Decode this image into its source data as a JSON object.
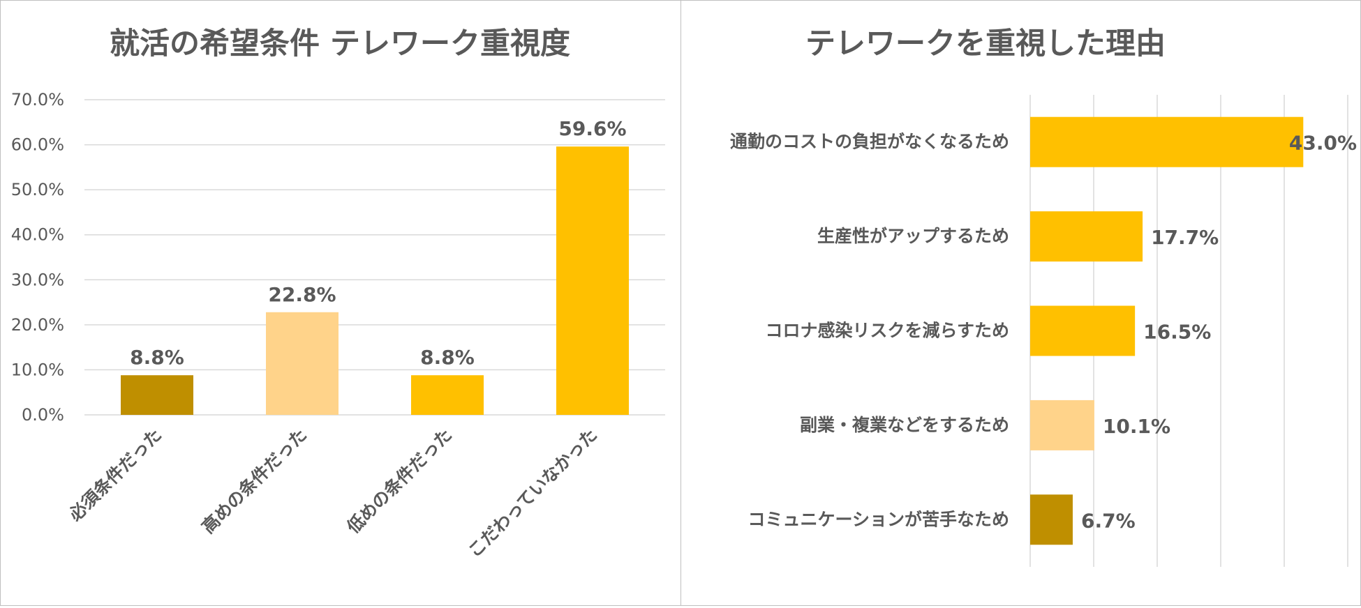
{
  "colors": {
    "bar_gold": "#FFC000",
    "bar_dark": "#BF8F00",
    "bar_light": "#FFD38A",
    "text": "#595959",
    "grid": "#D9D9D9"
  },
  "chart_data": [
    {
      "type": "bar",
      "title": "就活の希望条件 テレワーク重視度",
      "categories": [
        "必須条件だった",
        "高めの条件だった",
        "低めの条件だった",
        "こだわっていなかった"
      ],
      "values": [
        8.8,
        22.8,
        8.8,
        59.6
      ],
      "value_labels": [
        "8.8%",
        "22.8%",
        "8.8%",
        "59.6%"
      ],
      "bar_colors": [
        "#BF8F00",
        "#FFD38A",
        "#FFC000",
        "#FFC000"
      ],
      "ylim": [
        0,
        70
      ],
      "yticks": [
        0,
        10,
        20,
        30,
        40,
        50,
        60,
        70
      ],
      "ytick_labels": [
        "0.0%",
        "10.0%",
        "20.0%",
        "30.0%",
        "40.0%",
        "50.0%",
        "60.0%",
        "70.0%"
      ],
      "grid": true,
      "orientation": "vertical"
    },
    {
      "type": "bar",
      "title": "テレワークを重視した理由",
      "categories": [
        "通勤のコストの負担がなくなるため",
        "生産性がアップするため",
        "コロナ感染リスクを減らすため",
        "副業・複業などをするため",
        "コミュニケーションが苦手なため"
      ],
      "values": [
        43.0,
        17.7,
        16.5,
        10.1,
        6.7
      ],
      "value_labels": [
        "43.0%",
        "17.7%",
        "16.5%",
        "10.1%",
        "6.7%"
      ],
      "bar_colors": [
        "#FFC000",
        "#FFC000",
        "#FFC000",
        "#FFD38A",
        "#BF8F00"
      ],
      "xlim": [
        0,
        50
      ],
      "grid": true,
      "orientation": "horizontal"
    }
  ]
}
